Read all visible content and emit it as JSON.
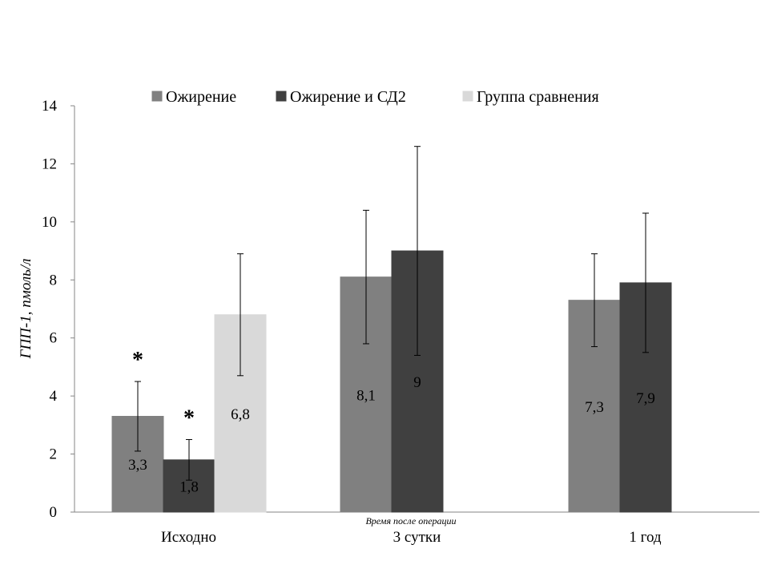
{
  "chart_data": {
    "type": "bar",
    "categories": [
      "Исходно",
      "3 сутки",
      "1 год"
    ],
    "series": [
      {
        "name": "Ожирение",
        "color": "#808080",
        "values": [
          3.3,
          8.1,
          7.3
        ],
        "labels": [
          "3,3",
          "8,1",
          "7,3"
        ],
        "error_low": [
          2.1,
          5.8,
          5.7
        ],
        "error_high": [
          4.5,
          10.4,
          8.9
        ]
      },
      {
        "name": "Ожирение и СД2",
        "color": "#404040",
        "values": [
          1.8,
          9,
          7.9
        ],
        "labels": [
          "1,8",
          "9",
          "7,9"
        ],
        "error_low": [
          1.1,
          5.4,
          5.5
        ],
        "error_high": [
          2.5,
          12.6,
          10.3
        ]
      },
      {
        "name": "Группа сравнения",
        "color": "#d9d9d9",
        "values": [
          6.8,
          null,
          null
        ],
        "labels": [
          "6,8",
          "",
          ""
        ],
        "error_low": [
          4.7,
          null,
          null
        ],
        "error_high": [
          8.9,
          null,
          null
        ]
      }
    ],
    "significance_markers": [
      {
        "text": "*",
        "category": 0,
        "series": 0
      },
      {
        "text": "*",
        "category": 0,
        "series": 1
      }
    ],
    "xlabel": "Время после операции",
    "ylabel": "ГПП-1, пмоль/л",
    "ylim": [
      0,
      14
    ],
    "yticks": [
      0,
      2,
      4,
      6,
      8,
      10,
      12,
      14
    ],
    "ytick_labels": [
      "0",
      "2",
      "4",
      "6",
      "8",
      "10",
      "12",
      "14"
    ],
    "legend_position": "top",
    "grid": false
  }
}
